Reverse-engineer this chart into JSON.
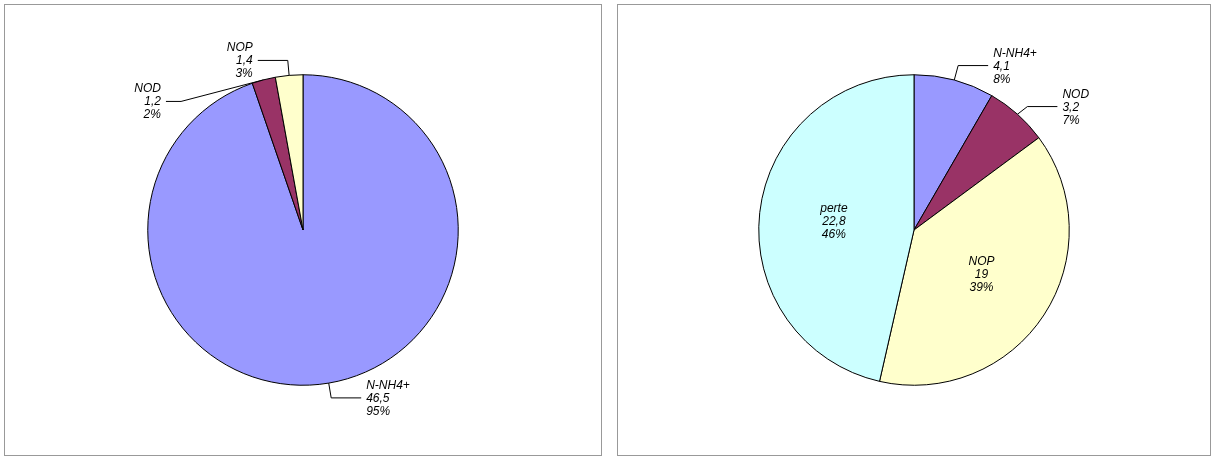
{
  "chart_data": [
    {
      "type": "pie",
      "categories": [
        "N-NH4+",
        "NOD",
        "NOP"
      ],
      "values": [
        46.5,
        1.2,
        1.4
      ],
      "colors": [
        "#9999ff",
        "#993366",
        "#ffffcc"
      ],
      "value_labels": [
        "46,5\n95%",
        "1,2\n2%",
        "1,4\n3%"
      ]
    },
    {
      "type": "pie",
      "categories": [
        "N-NH4+",
        "NOD",
        "NOP",
        "perte"
      ],
      "values": [
        4.1,
        3.2,
        19,
        22.8
      ],
      "colors": [
        "#9999ff",
        "#993366",
        "#ffffcc",
        "#ccffff"
      ],
      "value_labels": [
        "4,1\n8%",
        "3,2\n7%",
        "19\n39%",
        "22,8\n46%"
      ]
    }
  ]
}
